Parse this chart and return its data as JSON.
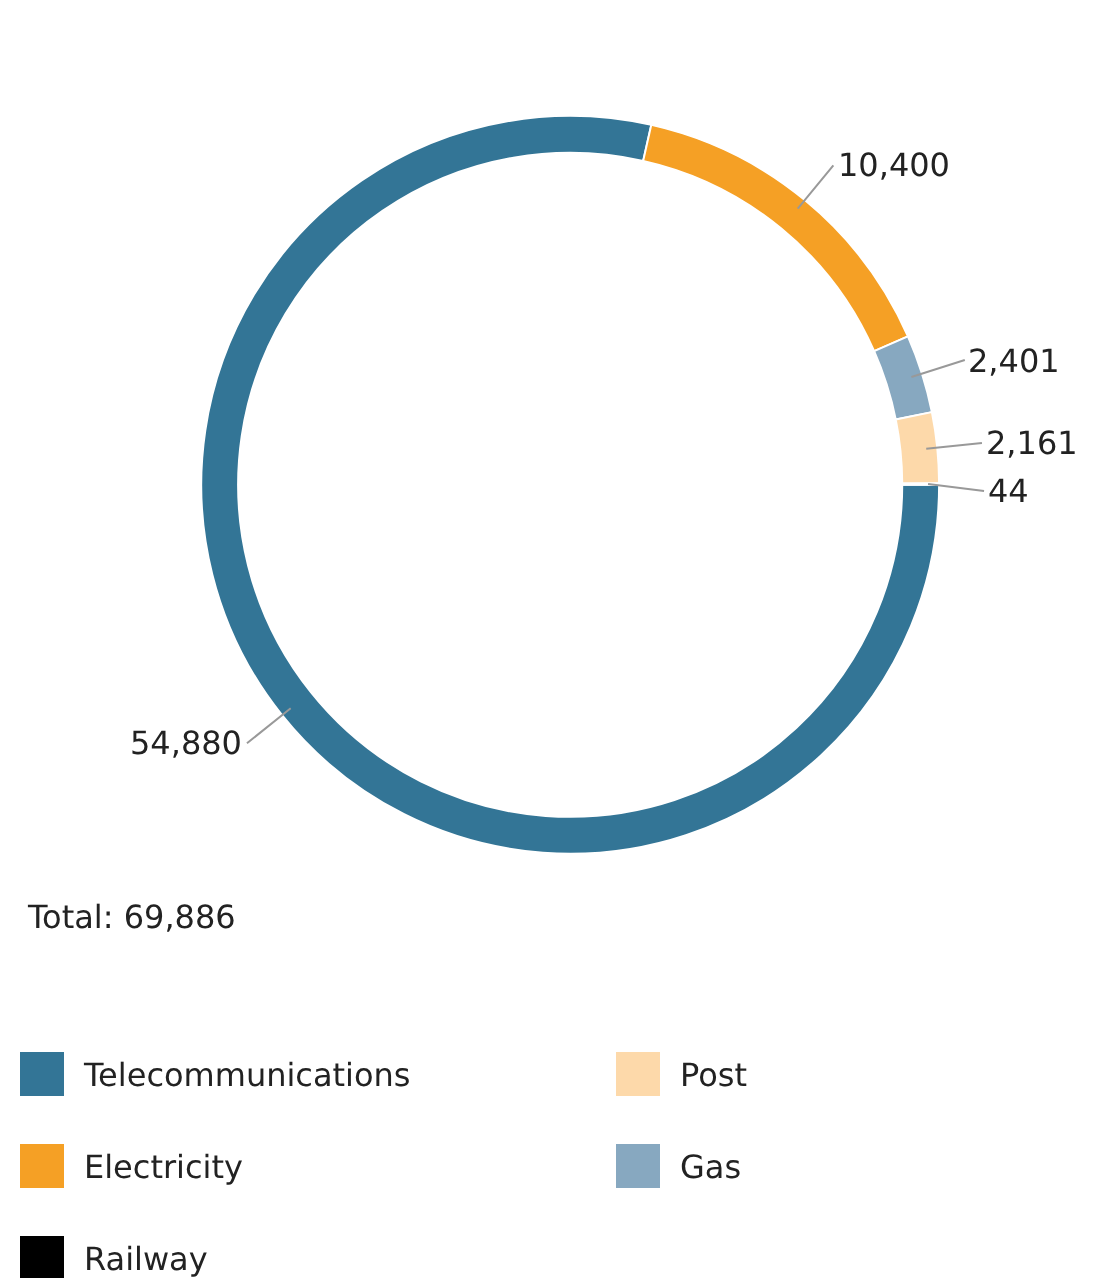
{
  "chart_data": {
    "type": "donut",
    "categories": [
      "Telecommunications",
      "Electricity",
      "Gas",
      "Post",
      "Railway"
    ],
    "values": [
      54880,
      10400,
      2401,
      2161,
      44
    ],
    "colors": [
      "#337596",
      "#f5a025",
      "#87a8c0",
      "#fdd9aa",
      "#000000"
    ],
    "value_labels": [
      "54,880",
      "10,400",
      "2,401",
      "2,161",
      "44"
    ],
    "annotations": [
      "Total: 69,886"
    ],
    "legend": "bottom"
  }
}
